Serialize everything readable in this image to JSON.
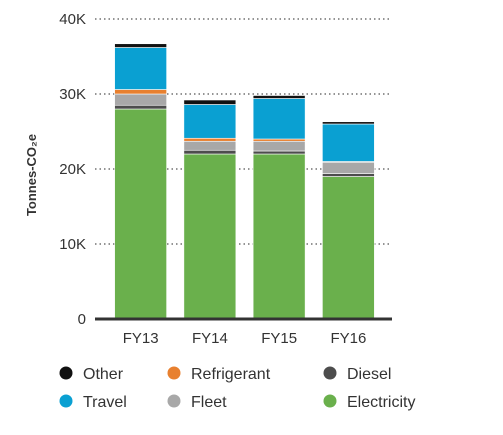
{
  "chart_data": {
    "type": "bar",
    "stacked": true,
    "categories": [
      "FY13",
      "FY14",
      "FY15",
      "FY16"
    ],
    "ylabel": "Tonnes-CO₂e",
    "ylim": [
      0,
      40000
    ],
    "yticks": [
      0,
      10000,
      20000,
      30000,
      40000
    ],
    "ytick_labels": [
      "0",
      "10K",
      "20K",
      "30K",
      "40K"
    ],
    "grid": "horizontal dotted",
    "legend": "bottom",
    "series": [
      {
        "name": "Electricity",
        "color": "#6ab04c",
        "values": [
          28000,
          22000,
          22000,
          19000
        ]
      },
      {
        "name": "Diesel",
        "color": "#4d4d4d",
        "values": [
          500,
          500,
          400,
          400
        ]
      },
      {
        "name": "Fleet",
        "color": "#a8a8a8",
        "values": [
          1500,
          1200,
          1300,
          1500
        ]
      },
      {
        "name": "Refrigerant",
        "color": "#e8802f",
        "values": [
          600,
          400,
          300,
          100
        ]
      },
      {
        "name": "Travel",
        "color": "#0aa0d2",
        "values": [
          5600,
          4500,
          5400,
          5000
        ]
      },
      {
        "name": "Other",
        "color": "#111111",
        "values": [
          500,
          600,
          400,
          300
        ]
      }
    ],
    "legend_order": [
      "Other",
      "Refrigerant",
      "Diesel",
      "Travel",
      "Fleet",
      "Electricity"
    ]
  }
}
